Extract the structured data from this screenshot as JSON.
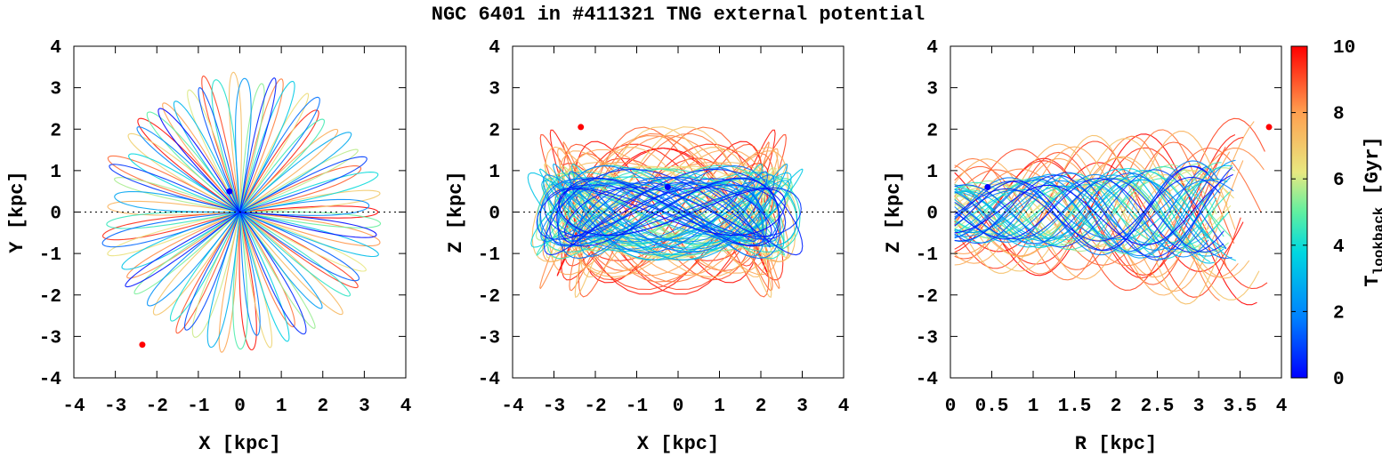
{
  "figure_title": "NGC 6401 in #411321 TNG external potential",
  "colorbar": {
    "label_main": "T",
    "label_sub": "lookback",
    "label_unit": " [Gyr]",
    "min": 0,
    "max": 10,
    "ticks": [
      0,
      2,
      4,
      6,
      8,
      10
    ],
    "colormap": "jet",
    "stops": [
      "#0000ff",
      "#0080ff",
      "#00d8e0",
      "#60f0a0",
      "#e8e880",
      "#ffa050",
      "#ff0000"
    ]
  },
  "colors": {
    "start_marker": "#ff0000",
    "end_marker": "#0000ff"
  },
  "chart_data": [
    {
      "type": "scatter",
      "title": "",
      "xlabel": "X [kpc]",
      "ylabel": "Y [kpc]",
      "xlim": [
        -4,
        4
      ],
      "ylim": [
        -4,
        4
      ],
      "xticks": [
        "-4",
        "-3",
        "-2",
        "-1",
        "0",
        "1",
        "2",
        "3",
        "4"
      ],
      "yticks": [
        "-4",
        "-3",
        "-2",
        "-1",
        "0",
        "1",
        "2",
        "3",
        "4"
      ],
      "zero_line": "y",
      "orbit_projection": "x-y",
      "markers": [
        {
          "name": "present",
          "x": -0.25,
          "y": 0.5,
          "color": "#0000ff"
        },
        {
          "name": "start",
          "x": -2.35,
          "y": -3.2,
          "color": "#ff0000"
        }
      ]
    },
    {
      "type": "scatter",
      "title": "",
      "xlabel": "X [kpc]",
      "ylabel": "Z [kpc]",
      "xlim": [
        -4,
        4
      ],
      "ylim": [
        -4,
        4
      ],
      "xticks": [
        "-4",
        "-3",
        "-2",
        "-1",
        "0",
        "1",
        "2",
        "3",
        "4"
      ],
      "yticks": [
        "-4",
        "-3",
        "-2",
        "-1",
        "0",
        "1",
        "2",
        "3",
        "4"
      ],
      "zero_line": "y",
      "orbit_projection": "x-z",
      "markers": [
        {
          "name": "present",
          "x": -0.25,
          "y": 0.6,
          "color": "#0000ff"
        },
        {
          "name": "start",
          "x": -2.35,
          "y": 2.05,
          "color": "#ff0000"
        }
      ]
    },
    {
      "type": "scatter",
      "title": "",
      "xlabel": "R [kpc]",
      "ylabel": "Z [kpc]",
      "xlim": [
        0,
        4
      ],
      "ylim": [
        -4,
        4
      ],
      "xticks": [
        "0",
        "0.5",
        "1",
        "1.5",
        "2",
        "2.5",
        "3",
        "3.5",
        "4"
      ],
      "yticks": [
        "-4",
        "-3",
        "-2",
        "-1",
        "0",
        "1",
        "2",
        "3",
        "4"
      ],
      "zero_line": "y",
      "orbit_projection": "R-z",
      "markers": [
        {
          "name": "present",
          "x": 0.45,
          "y": 0.6,
          "color": "#0000ff"
        },
        {
          "name": "start",
          "x": 3.85,
          "y": 2.05,
          "color": "#ff0000"
        }
      ]
    }
  ]
}
